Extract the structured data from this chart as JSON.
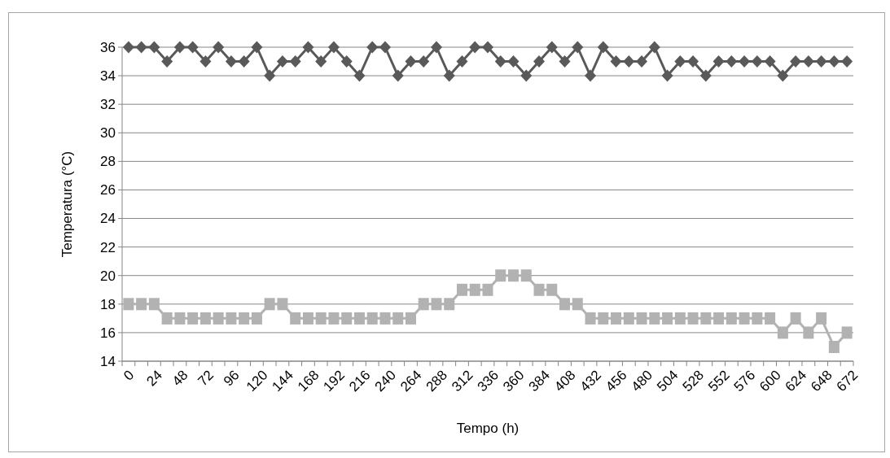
{
  "chart_data": {
    "type": "line",
    "xlabel": "Tempo (h)",
    "ylabel": "Temperatura (°C)",
    "categories": [
      "0",
      null,
      "24",
      null,
      "48",
      null,
      "72",
      null,
      "96",
      null,
      "120",
      null,
      "144",
      null,
      "168",
      null,
      "192",
      null,
      "216",
      null,
      "240",
      null,
      "264",
      null,
      "288",
      null,
      "312",
      null,
      "336",
      null,
      "360",
      null,
      "384",
      null,
      "408",
      null,
      "432",
      null,
      "456",
      null,
      "480",
      null,
      "504",
      null,
      "528",
      null,
      "552",
      null,
      "576",
      null,
      "600",
      null,
      "624",
      null,
      "648",
      null,
      "672"
    ],
    "series": [
      {
        "color": "#595959",
        "marker": "diamond",
        "values": [
          36,
          36,
          36,
          35,
          36,
          36,
          35,
          36,
          35,
          35,
          36,
          34,
          35,
          35,
          36,
          35,
          36,
          35,
          34,
          36,
          36,
          34,
          35,
          35,
          36,
          34,
          35,
          36,
          36,
          35,
          35,
          34,
          35,
          36,
          35,
          36,
          34,
          36,
          35,
          35,
          35,
          36,
          34,
          35,
          35,
          34,
          35,
          35,
          35,
          35,
          35,
          34,
          35,
          35,
          35,
          35,
          35
        ]
      },
      {
        "color": "#b2b2b2",
        "marker": "square",
        "values": [
          18,
          18,
          18,
          17,
          17,
          17,
          17,
          17,
          17,
          17,
          17,
          18,
          18,
          17,
          17,
          17,
          17,
          17,
          17,
          17,
          17,
          17,
          17,
          18,
          18,
          18,
          19,
          19,
          19,
          20,
          20,
          20,
          19,
          19,
          18,
          18,
          17,
          17,
          17,
          17,
          17,
          17,
          17,
          17,
          17,
          17,
          17,
          17,
          17,
          17,
          17,
          16,
          17,
          16,
          17,
          15,
          16
        ]
      }
    ],
    "ylim": [
      14,
      36
    ],
    "yticks": [
      14,
      16,
      18,
      20,
      22,
      24,
      26,
      28,
      30,
      32,
      34,
      36
    ],
    "grid": "y"
  }
}
